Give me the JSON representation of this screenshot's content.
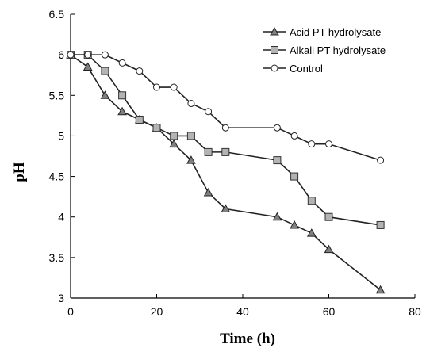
{
  "chart_data": {
    "type": "line",
    "title": "",
    "xlabel": "Time (h)",
    "ylabel": "pH",
    "xlim": [
      0,
      80
    ],
    "ylim": [
      3,
      6.5
    ],
    "xticks": [
      0,
      20,
      40,
      60,
      80
    ],
    "yticks": [
      3,
      3.5,
      4,
      4.5,
      5,
      5.5,
      6,
      6.5
    ],
    "ytick_labels": [
      "3",
      "3.5",
      "4",
      "4.5",
      "5",
      "5.5",
      "6",
      "6.5"
    ],
    "grid": false,
    "legend": "top-right",
    "series": [
      {
        "name": "Acid PT hydrolysate",
        "marker": "triangle",
        "color": "#222222",
        "fill": "#808080",
        "x": [
          0,
          4,
          8,
          12,
          16,
          20,
          24,
          28,
          32,
          36,
          48,
          52,
          56,
          60,
          72
        ],
        "y": [
          6.0,
          5.85,
          5.5,
          5.3,
          5.2,
          5.1,
          4.9,
          4.7,
          4.3,
          4.1,
          4.0,
          3.9,
          3.8,
          3.6,
          3.1
        ]
      },
      {
        "name": "Alkali PT hydrolysate",
        "marker": "square",
        "color": "#222222",
        "fill": "#b3b3b3",
        "x": [
          0,
          4,
          8,
          12,
          16,
          20,
          24,
          28,
          32,
          36,
          48,
          52,
          56,
          60,
          72
        ],
        "y": [
          6.0,
          6.0,
          5.8,
          5.5,
          5.2,
          5.1,
          5.0,
          5.0,
          4.8,
          4.8,
          4.7,
          4.5,
          4.2,
          4.0,
          3.9
        ]
      },
      {
        "name": "Control",
        "marker": "circle",
        "color": "#222222",
        "fill": "#ffffff",
        "x": [
          0,
          4,
          8,
          12,
          16,
          20,
          24,
          28,
          32,
          36,
          48,
          52,
          56,
          60,
          72
        ],
        "y": [
          6.0,
          6.0,
          6.0,
          5.9,
          5.8,
          5.6,
          5.6,
          5.4,
          5.3,
          5.1,
          5.1,
          5.0,
          4.9,
          4.9,
          4.7
        ]
      }
    ]
  }
}
